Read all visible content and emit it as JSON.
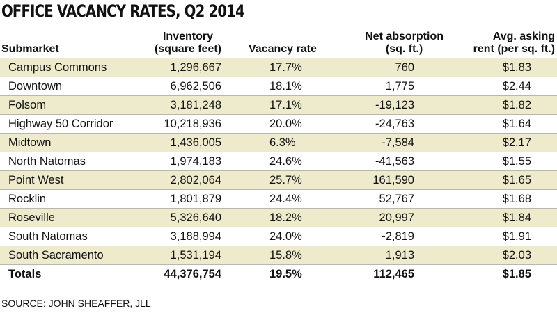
{
  "title": "OFFICE VACANCY RATES, Q2 2014",
  "table": {
    "columns": [
      [
        "Submarket"
      ],
      [
        "Inventory",
        "(square feet)"
      ],
      [
        "Vacancy rate"
      ],
      [
        "Net absorption",
        "(sq. ft.)"
      ],
      [
        "Avg. asking",
        "rent (per sq. ft.)"
      ]
    ],
    "rows": [
      [
        "Campus Commons",
        "1,296,667",
        "17.7%",
        "760",
        "$1.83"
      ],
      [
        "Downtown",
        "6,962,506",
        "18.1%",
        "1,775",
        "$2.44"
      ],
      [
        "Folsom",
        "3,181,248",
        "17.1%",
        "-19,123",
        "$1.82"
      ],
      [
        "Highway 50 Corridor",
        "10,218,936",
        "20.0%",
        "-24,763",
        "$1.64"
      ],
      [
        "Midtown",
        "1,436,005",
        "6.3%",
        "-7,584",
        "$2.17"
      ],
      [
        "North Natomas",
        "1,974,183",
        "24.6%",
        "-41,563",
        "$1.55"
      ],
      [
        "Point West",
        "2,802,064",
        "25.7%",
        "161,590",
        "$1.65"
      ],
      [
        "Rocklin",
        "1,801,879",
        "24.4%",
        "52,767",
        "$1.68"
      ],
      [
        "Roseville",
        "5,326,640",
        "18.2%",
        "20,997",
        "$1.84"
      ],
      [
        "South Natomas",
        "3,188,994",
        "24.0%",
        "-2,819",
        "$1.91"
      ],
      [
        "South Sacramento",
        "1,531,194",
        "15.8%",
        "1,913",
        "$2.03"
      ]
    ],
    "totals": [
      "Totals",
      "44,376,754",
      "19.5%",
      "112,465",
      "$1.85"
    ]
  },
  "source": "SOURCE: JOHN SHEAFFER, JLL"
}
